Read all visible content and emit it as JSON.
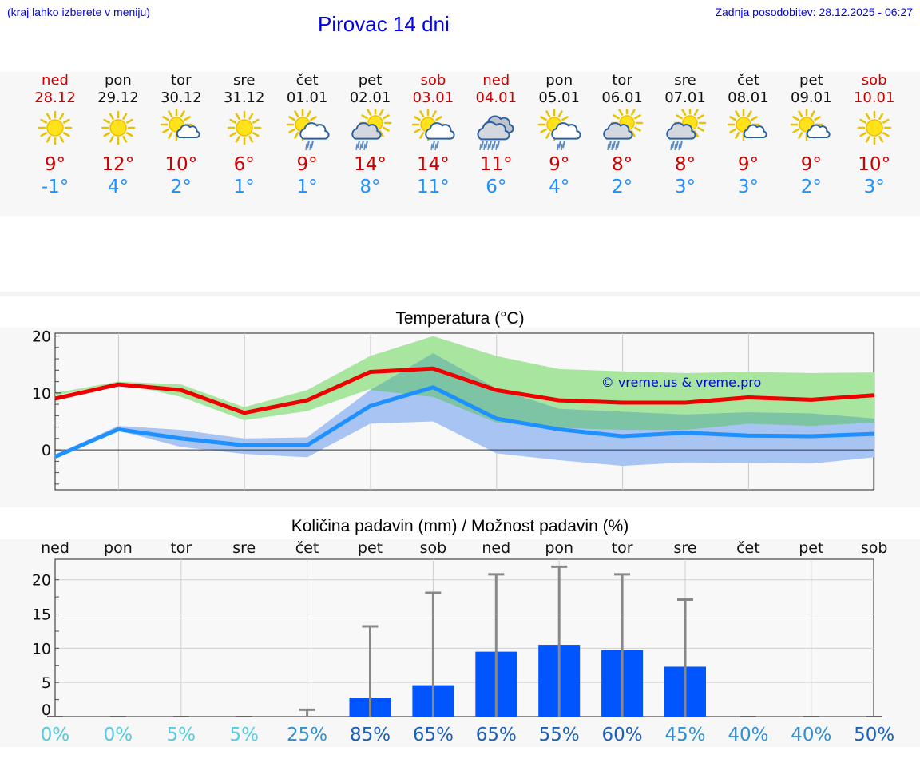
{
  "header": {
    "hint": "(kraj lahko izberete v meniju)",
    "title": "Pirovac 14 dni",
    "updated": "Zadnja posodobitev: 28.12.2025 - 06:27"
  },
  "days": [
    {
      "name": "ned",
      "date": "28.12",
      "weekend": true,
      "icon": "sun-icon",
      "tmax": "9°",
      "tmin": "-1°"
    },
    {
      "name": "pon",
      "date": "29.12",
      "weekend": false,
      "icon": "sun-icon",
      "tmax": "12°",
      "tmin": "4°"
    },
    {
      "name": "tor",
      "date": "30.12",
      "weekend": false,
      "icon": "sun-small-cloud-icon",
      "tmax": "10°",
      "tmin": "2°"
    },
    {
      "name": "sre",
      "date": "31.12",
      "weekend": false,
      "icon": "sun-icon",
      "tmax": "6°",
      "tmin": "1°"
    },
    {
      "name": "čet",
      "date": "01.01",
      "weekend": false,
      "icon": "sun-cloud-rain-icon",
      "tmax": "9°",
      "tmin": "1°"
    },
    {
      "name": "pet",
      "date": "02.01",
      "weekend": false,
      "icon": "cloud-sun-rain-icon",
      "tmax": "14°",
      "tmin": "8°"
    },
    {
      "name": "sob",
      "date": "03.01",
      "weekend": true,
      "icon": "sun-cloud-rain-icon",
      "tmax": "14°",
      "tmin": "11°"
    },
    {
      "name": "ned",
      "date": "04.01",
      "weekend": true,
      "icon": "heavy-rain-cloud-icon",
      "tmax": "11°",
      "tmin": "6°"
    },
    {
      "name": "pon",
      "date": "05.01",
      "weekend": false,
      "icon": "sun-cloud-rain-icon",
      "tmax": "9°",
      "tmin": "4°"
    },
    {
      "name": "tor",
      "date": "06.01",
      "weekend": false,
      "icon": "cloud-sun-rain-icon",
      "tmax": "8°",
      "tmin": "2°"
    },
    {
      "name": "sre",
      "date": "07.01",
      "weekend": false,
      "icon": "cloud-sun-rain-icon",
      "tmax": "8°",
      "tmin": "3°"
    },
    {
      "name": "čet",
      "date": "08.01",
      "weekend": false,
      "icon": "sun-small-cloud-icon",
      "tmax": "9°",
      "tmin": "3°"
    },
    {
      "name": "pet",
      "date": "09.01",
      "weekend": false,
      "icon": "sun-small-cloud-icon",
      "tmax": "9°",
      "tmin": "2°"
    },
    {
      "name": "sob",
      "date": "10.01",
      "weekend": true,
      "icon": "sun-icon",
      "tmax": "10°",
      "tmin": "3°"
    }
  ],
  "colors": {
    "weekend": "#cc0000",
    "tmax": "#ee0000",
    "tmin": "#1e90ff",
    "bar": "#0055ff",
    "maxband": "#a8e6a0",
    "minband": "#a8c4f2",
    "overlap": "#7cc4a4",
    "whisker": "#888888",
    "grid": "#cccccc"
  },
  "chart_data": [
    {
      "type": "line",
      "title": "Temperatura (°C)",
      "watermark": "© vreme.us & vreme.pro",
      "yticks": [
        "20",
        "10",
        "0"
      ],
      "ylim": [
        -7,
        20.5
      ],
      "x": [
        0,
        1,
        2,
        3,
        4,
        5,
        6,
        7,
        8,
        9,
        10,
        11,
        12,
        13
      ],
      "series": [
        {
          "name": "max",
          "values": [
            9,
            11.5,
            10.5,
            6.5,
            8.7,
            13.7,
            14.3,
            10.5,
            8.7,
            8.3,
            8.3,
            9.2,
            8.8,
            9.6
          ],
          "band_low": [
            9.5,
            11.8,
            9.3,
            5.2,
            6.8,
            10.7,
            9.3,
            4.8,
            3.9,
            3.5,
            3.5,
            4.6,
            4.2,
            4.8
          ],
          "band_high": [
            10,
            12,
            11.5,
            7.5,
            10.5,
            16.5,
            20,
            16.5,
            14.2,
            13.8,
            13.5,
            13.7,
            13.5,
            13.6
          ]
        },
        {
          "name": "min",
          "values": [
            -1.2,
            3.6,
            2,
            0.8,
            0.8,
            7.7,
            11,
            5.5,
            3.6,
            2.4,
            3,
            2.5,
            2.4,
            2.8
          ],
          "band_low": [
            -1.5,
            3.4,
            0.5,
            -0.7,
            -1.3,
            4.6,
            5,
            -0.6,
            -1.8,
            -2.8,
            -2.2,
            -2.3,
            -2.4,
            -1.3
          ],
          "band_high": [
            -0.9,
            4.2,
            3.5,
            2,
            2.2,
            10.5,
            17,
            10.8,
            7.2,
            6.7,
            6.2,
            6.6,
            6.4,
            5.5
          ]
        }
      ]
    },
    {
      "type": "bar",
      "title": "Količina padavin (mm) / Možnost padavin (%)",
      "categories": [
        "ned",
        "pon",
        "tor",
        "sre",
        "čet",
        "pet",
        "sob",
        "ned",
        "pon",
        "tor",
        "sre",
        "čet",
        "pet",
        "sob"
      ],
      "values": [
        0,
        0,
        0,
        0,
        0,
        2.8,
        4.6,
        9.5,
        10.5,
        9.7,
        7.3,
        0,
        0,
        0
      ],
      "error_high": [
        0,
        0,
        0,
        0,
        1,
        13.2,
        18.1,
        20.8,
        21.9,
        20.8,
        17.1,
        0,
        0,
        0
      ],
      "ylim": [
        0,
        23
      ],
      "yticks": [
        "20",
        "15",
        "10",
        "5",
        "0"
      ],
      "probabilities": [
        "0%",
        "0%",
        "5%",
        "5%",
        "25%",
        "85%",
        "65%",
        "65%",
        "55%",
        "60%",
        "45%",
        "40%",
        "40%",
        "50%"
      ],
      "prob_colors": [
        "#55ccdd",
        "#55ccdd",
        "#55ccdd",
        "#55ccdd",
        "#2f8fd0",
        "#1a5fb8",
        "#1a5fb8",
        "#1a5fb8",
        "#1a5fb8",
        "#1a5fb8",
        "#2f8fd0",
        "#2f8fd0",
        "#2f8fd0",
        "#1a5fb8"
      ]
    }
  ]
}
